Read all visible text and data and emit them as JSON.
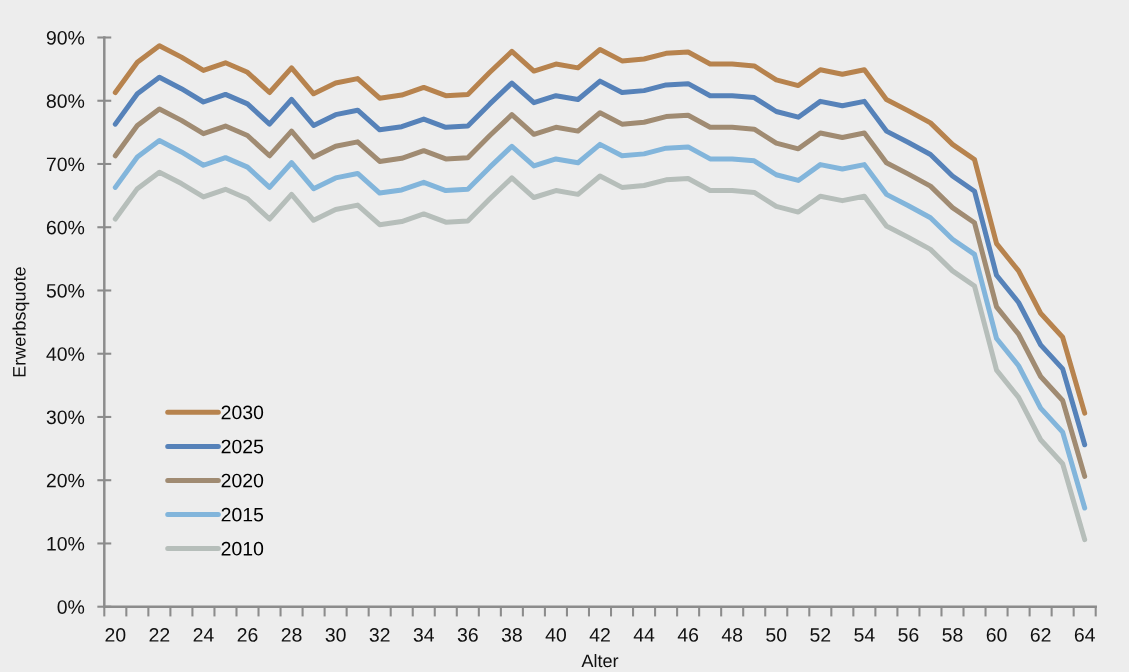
{
  "chart_data": {
    "type": "line",
    "xlabel": "Alter",
    "ylabel": "Erwerbsquote",
    "x": [
      20,
      21,
      22,
      23,
      24,
      25,
      26,
      27,
      28,
      29,
      30,
      31,
      32,
      33,
      34,
      35,
      36,
      37,
      38,
      39,
      40,
      41,
      42,
      43,
      44,
      45,
      46,
      47,
      48,
      49,
      50,
      51,
      52,
      53,
      54,
      55,
      56,
      57,
      58,
      59,
      60,
      61,
      62,
      63,
      64
    ],
    "series": [
      {
        "name": "2030",
        "color": "#b7834e",
        "values": [
          81.3,
          86.1,
          88.7,
          86.9,
          84.8,
          86.0,
          84.5,
          81.3,
          85.2,
          81.1,
          82.8,
          83.5,
          80.4,
          80.9,
          82.1,
          80.8,
          81.0,
          84.5,
          87.8,
          84.7,
          85.8,
          85.2,
          88.1,
          86.3,
          86.6,
          87.5,
          87.7,
          85.8,
          85.8,
          85.5,
          83.3,
          82.4,
          84.9,
          84.2,
          84.9,
          80.2,
          78.4,
          76.5,
          73.1,
          70.7,
          57.4,
          53.1,
          46.4,
          42.6,
          30.6
        ]
      },
      {
        "name": "2025",
        "color": "#5682b9",
        "values": [
          76.3,
          81.1,
          83.7,
          81.9,
          79.8,
          81.0,
          79.5,
          76.3,
          80.2,
          76.1,
          77.8,
          78.5,
          75.4,
          75.9,
          77.1,
          75.8,
          76.0,
          79.5,
          82.8,
          79.7,
          80.8,
          80.2,
          83.1,
          81.3,
          81.6,
          82.5,
          82.7,
          80.8,
          80.8,
          80.5,
          78.3,
          77.4,
          79.9,
          79.2,
          79.9,
          75.2,
          73.4,
          71.5,
          68.1,
          65.7,
          52.4,
          48.1,
          41.4,
          37.6,
          25.6
        ]
      },
      {
        "name": "2020",
        "color": "#a08b72",
        "values": [
          71.3,
          76.1,
          78.7,
          76.9,
          74.8,
          76.0,
          74.5,
          71.3,
          75.2,
          71.1,
          72.8,
          73.5,
          70.4,
          70.9,
          72.1,
          70.8,
          71.0,
          74.5,
          77.8,
          74.7,
          75.8,
          75.2,
          78.1,
          76.3,
          76.6,
          77.5,
          77.7,
          75.8,
          75.8,
          75.5,
          73.3,
          72.4,
          74.9,
          74.2,
          74.9,
          70.2,
          68.4,
          66.5,
          63.1,
          60.7,
          47.4,
          43.1,
          36.4,
          32.6,
          20.6
        ]
      },
      {
        "name": "2015",
        "color": "#82b5db",
        "values": [
          66.3,
          71.1,
          73.7,
          71.9,
          69.8,
          71.0,
          69.5,
          66.3,
          70.2,
          66.1,
          67.8,
          68.5,
          65.4,
          65.9,
          67.1,
          65.8,
          66.0,
          69.5,
          72.8,
          69.7,
          70.8,
          70.2,
          73.1,
          71.3,
          71.6,
          72.5,
          72.7,
          70.8,
          70.8,
          70.5,
          68.3,
          67.4,
          69.9,
          69.2,
          69.9,
          65.2,
          63.4,
          61.5,
          58.1,
          55.7,
          42.4,
          38.1,
          31.4,
          27.6,
          15.6
        ]
      },
      {
        "name": "2010",
        "color": "#b6beba",
        "values": [
          61.3,
          66.1,
          68.7,
          66.9,
          64.8,
          66.0,
          64.5,
          61.3,
          65.2,
          61.1,
          62.8,
          63.5,
          60.4,
          60.9,
          62.1,
          60.8,
          61.0,
          64.5,
          67.8,
          64.7,
          65.8,
          65.2,
          68.1,
          66.3,
          66.6,
          67.5,
          67.7,
          65.8,
          65.8,
          65.5,
          63.3,
          62.4,
          64.9,
          64.2,
          64.9,
          60.2,
          58.4,
          56.5,
          53.1,
          50.7,
          37.4,
          33.1,
          26.4,
          22.6,
          10.6
        ]
      }
    ],
    "xlim": [
      19.5,
      64.5
    ],
    "xticks": [
      {
        "value": 19.5,
        "label": null
      },
      {
        "value": 20,
        "label": "20"
      },
      {
        "value": 20.5,
        "label": null
      },
      {
        "value": 21.5,
        "label": null
      },
      {
        "value": 22,
        "label": "22"
      },
      {
        "value": 22.5,
        "label": null
      },
      {
        "value": 23.5,
        "label": null
      },
      {
        "value": 24,
        "label": "24"
      },
      {
        "value": 24.5,
        "label": null
      },
      {
        "value": 25.5,
        "label": null
      },
      {
        "value": 26,
        "label": "26"
      },
      {
        "value": 26.5,
        "label": null
      },
      {
        "value": 27.5,
        "label": null
      },
      {
        "value": 28,
        "label": "28"
      },
      {
        "value": 28.5,
        "label": null
      },
      {
        "value": 29.5,
        "label": null
      },
      {
        "value": 30,
        "label": "30"
      },
      {
        "value": 30.5,
        "label": null
      },
      {
        "value": 31.5,
        "label": null
      },
      {
        "value": 32,
        "label": "32"
      },
      {
        "value": 32.5,
        "label": null
      },
      {
        "value": 33.5,
        "label": null
      },
      {
        "value": 34,
        "label": "34"
      },
      {
        "value": 34.5,
        "label": null
      },
      {
        "value": 35.5,
        "label": null
      },
      {
        "value": 36,
        "label": "36"
      },
      {
        "value": 36.5,
        "label": null
      },
      {
        "value": 37.5,
        "label": null
      },
      {
        "value": 38,
        "label": "38"
      },
      {
        "value": 38.5,
        "label": null
      },
      {
        "value": 39.5,
        "label": null
      },
      {
        "value": 40,
        "label": "40"
      },
      {
        "value": 40.5,
        "label": null
      },
      {
        "value": 41.5,
        "label": null
      },
      {
        "value": 42,
        "label": "42"
      },
      {
        "value": 42.5,
        "label": null
      },
      {
        "value": 43.5,
        "label": null
      },
      {
        "value": 44,
        "label": "44"
      },
      {
        "value": 44.5,
        "label": null
      },
      {
        "value": 45.5,
        "label": null
      },
      {
        "value": 46,
        "label": "46"
      },
      {
        "value": 46.5,
        "label": null
      },
      {
        "value": 47.5,
        "label": null
      },
      {
        "value": 48,
        "label": "48"
      },
      {
        "value": 48.5,
        "label": null
      },
      {
        "value": 49.5,
        "label": null
      },
      {
        "value": 50,
        "label": "50"
      },
      {
        "value": 50.5,
        "label": null
      },
      {
        "value": 51.5,
        "label": null
      },
      {
        "value": 52,
        "label": "52"
      },
      {
        "value": 52.5,
        "label": null
      },
      {
        "value": 53.5,
        "label": null
      },
      {
        "value": 54,
        "label": "54"
      },
      {
        "value": 54.5,
        "label": null
      },
      {
        "value": 55.5,
        "label": null
      },
      {
        "value": 56,
        "label": "56"
      },
      {
        "value": 56.5,
        "label": null
      },
      {
        "value": 57.5,
        "label": null
      },
      {
        "value": 58,
        "label": "58"
      },
      {
        "value": 58.5,
        "label": null
      },
      {
        "value": 59.5,
        "label": null
      },
      {
        "value": 60,
        "label": "60"
      },
      {
        "value": 60.5,
        "label": null
      },
      {
        "value": 61.5,
        "label": null
      },
      {
        "value": 62,
        "label": "62"
      },
      {
        "value": 62.5,
        "label": null
      },
      {
        "value": 63.5,
        "label": null
      },
      {
        "value": 64,
        "label": "64"
      },
      {
        "value": 64.5,
        "label": null
      }
    ],
    "ylim": [
      0,
      90
    ],
    "yticks": [
      {
        "value": 0,
        "label": "0%"
      },
      {
        "value": 10,
        "label": "10%"
      },
      {
        "value": 20,
        "label": "20%"
      },
      {
        "value": 30,
        "label": "30%"
      },
      {
        "value": 40,
        "label": "40%"
      },
      {
        "value": 50,
        "label": "50%"
      },
      {
        "value": 60,
        "label": "60%"
      },
      {
        "value": 70,
        "label": "70%"
      },
      {
        "value": 80,
        "label": "80%"
      },
      {
        "value": 90,
        "label": "90%"
      }
    ],
    "legend": "bottom left"
  }
}
